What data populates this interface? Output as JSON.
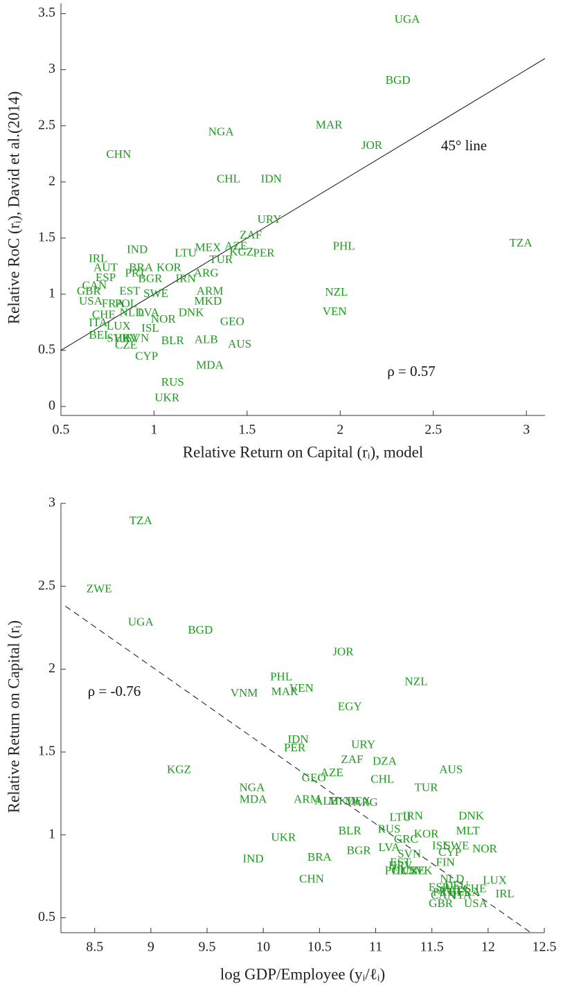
{
  "chart_data": [
    {
      "type": "scatter",
      "color": "#1f9a1f",
      "xlabel": "Relative Return on Capital (rᵢ), model",
      "ylabel": "Relative RoC (rᵢ), David et al.(2014)",
      "xlim": [
        0.5,
        3.1
      ],
      "ylim": [
        -0.08,
        3.59
      ],
      "xticks": [
        0.5,
        1,
        1.5,
        2,
        2.5,
        3
      ],
      "yticks": [
        0,
        0.5,
        1,
        1.5,
        2,
        2.5,
        3,
        3.5
      ],
      "labels": [
        "UGA",
        "BGD",
        "MAR",
        "JOR",
        "NGA",
        "CHN",
        "CHL",
        "IDN",
        "URY",
        "ZAF",
        "TZA",
        "PHL",
        "IND",
        "MEX",
        "AZE",
        "LTU",
        "KGZ",
        "PER",
        "TUR",
        "IRL",
        "AUT",
        "BRA",
        "KOR",
        "PRT",
        "ARG",
        "ESP",
        "BGR",
        "IRN",
        "CAN",
        "GBR",
        "EST",
        "SWE",
        "NZL",
        "ARM",
        "USA",
        "MKD",
        "FRA",
        "POL",
        "CHE",
        "NLD",
        "LVA",
        "DNK",
        "VEN",
        "GEO",
        "NOR",
        "ISL",
        "ITA",
        "LUX",
        "BEL",
        "BLR",
        "ALB",
        "AUS",
        "CZE",
        "SVN",
        "HRV",
        "SVK",
        "CYP",
        "MDA",
        "RUS",
        "UKR"
      ],
      "x": [
        2.36,
        2.31,
        1.94,
        2.17,
        1.36,
        0.81,
        1.4,
        1.63,
        1.62,
        1.52,
        2.97,
        2.02,
        0.91,
        1.29,
        1.44,
        1.17,
        1.47,
        1.59,
        1.36,
        0.7,
        0.74,
        0.93,
        1.08,
        0.9,
        1.28,
        0.74,
        0.98,
        1.17,
        0.68,
        0.65,
        0.87,
        1.01,
        1.98,
        1.3,
        0.66,
        1.29,
        0.78,
        0.85,
        0.73,
        0.88,
        0.97,
        1.2,
        1.97,
        1.42,
        1.05,
        0.98,
        0.7,
        0.81,
        0.71,
        1.1,
        1.28,
        1.46,
        0.85,
        0.91,
        0.85,
        0.81,
        0.96,
        1.3,
        1.1,
        1.07
      ],
      "values": [
        3.44,
        2.9,
        2.5,
        2.32,
        2.44,
        2.24,
        2.02,
        2.02,
        1.66,
        1.52,
        1.45,
        1.42,
        1.39,
        1.41,
        1.42,
        1.36,
        1.37,
        1.36,
        1.3,
        1.31,
        1.23,
        1.23,
        1.23,
        1.18,
        1.18,
        1.14,
        1.13,
        1.13,
        1.07,
        1.02,
        1.02,
        1.0,
        1.01,
        1.02,
        0.93,
        0.93,
        0.91,
        0.91,
        0.81,
        0.83,
        0.83,
        0.83,
        0.84,
        0.75,
        0.77,
        0.69,
        0.74,
        0.71,
        0.63,
        0.58,
        0.59,
        0.55,
        0.54,
        0.6,
        0.6,
        0.6,
        0.44,
        0.36,
        0.21,
        0.07
      ],
      "line": {
        "x": [
          0.5,
          3.1
        ],
        "y": [
          0.5,
          3.1
        ],
        "dashed": false
      },
      "annotations": [
        "45° line",
        "ρ = 0.57"
      ]
    },
    {
      "type": "scatter",
      "color": "#1f9a1f",
      "xlabel": "log GDP/Employee (yᵢ/ℓᵢ)",
      "ylabel": "Relative Return on Capital (rᵢ)",
      "xlim": [
        8.2,
        12.5
      ],
      "ylim": [
        0.41,
        3.0
      ],
      "xticks": [
        8.5,
        9,
        9.5,
        10,
        10.5,
        11,
        11.5,
        12,
        12.5
      ],
      "yticks": [
        0.5,
        1,
        1.5,
        2,
        2.5,
        3
      ],
      "labels": [
        "TZA",
        "ZWE",
        "UGA",
        "BGD",
        "JOR",
        "PHL",
        "NZL",
        "VEN",
        "MAR",
        "VNM",
        "EGY",
        "IDN",
        "PER",
        "URY",
        "ZAF",
        "DZA",
        "KGZ",
        "AUS",
        "AZE",
        "GEO",
        "CHL",
        "TUR",
        "NGA",
        "MDA",
        "ARM",
        "ALB",
        "MKD",
        "MEX",
        "ARG",
        "LTU",
        "IRN",
        "DNK",
        "UKR",
        "BLR",
        "RUS",
        "MLT",
        "KOR",
        "GRC",
        "ISL",
        "SWE",
        "NOR",
        "CYP",
        "BGR",
        "LVA",
        "SVN",
        "EST",
        "FIN",
        "IND",
        "BRA",
        "HRV",
        "POL",
        "HUN",
        "CZE",
        "SVK",
        "CHN",
        "NLD",
        "LUX",
        "DEU",
        "ESP",
        "PRT",
        "AUT",
        "BEL",
        "CAN",
        "ITA",
        "FRA",
        "CHE",
        "IRL",
        "USA",
        "GBR"
      ],
      "x": [
        8.91,
        8.54,
        8.91,
        9.44,
        10.71,
        10.16,
        11.36,
        10.34,
        10.19,
        9.83,
        10.77,
        10.31,
        10.28,
        10.89,
        10.79,
        11.08,
        9.25,
        11.67,
        10.61,
        10.45,
        11.06,
        11.45,
        9.9,
        9.91,
        10.39,
        10.56,
        10.7,
        10.84,
        10.91,
        11.22,
        11.33,
        11.85,
        10.18,
        10.77,
        11.12,
        11.82,
        11.45,
        11.27,
        11.58,
        11.72,
        11.97,
        11.66,
        10.85,
        11.12,
        11.3,
        11.22,
        11.62,
        9.91,
        10.5,
        11.22,
        11.18,
        11.26,
        11.34,
        11.4,
        10.43,
        11.68,
        12.06,
        11.72,
        11.56,
        11.6,
        11.66,
        11.75,
        11.6,
        11.77,
        11.83,
        11.88,
        12.15,
        11.89,
        11.58
      ],
      "values": [
        2.89,
        2.48,
        2.28,
        2.23,
        2.1,
        1.95,
        1.92,
        1.88,
        1.86,
        1.85,
        1.77,
        1.57,
        1.52,
        1.54,
        1.45,
        1.44,
        1.39,
        1.39,
        1.37,
        1.34,
        1.33,
        1.28,
        1.28,
        1.21,
        1.21,
        1.2,
        1.2,
        1.2,
        1.19,
        1.1,
        1.11,
        1.11,
        0.98,
        1.02,
        1.03,
        1.02,
        1.0,
        0.97,
        0.93,
        0.93,
        0.91,
        0.89,
        0.9,
        0.92,
        0.88,
        0.83,
        0.83,
        0.85,
        0.86,
        0.81,
        0.78,
        0.78,
        0.78,
        0.78,
        0.73,
        0.73,
        0.72,
        0.69,
        0.68,
        0.65,
        0.66,
        0.65,
        0.63,
        0.63,
        0.65,
        0.67,
        0.64,
        0.58,
        0.58
      ],
      "line": {
        "x": [
          8.24,
          12.38
        ],
        "y": [
          2.38,
          0.41
        ],
        "dashed": true
      },
      "annotations": [
        "ρ = -0.76"
      ]
    }
  ]
}
